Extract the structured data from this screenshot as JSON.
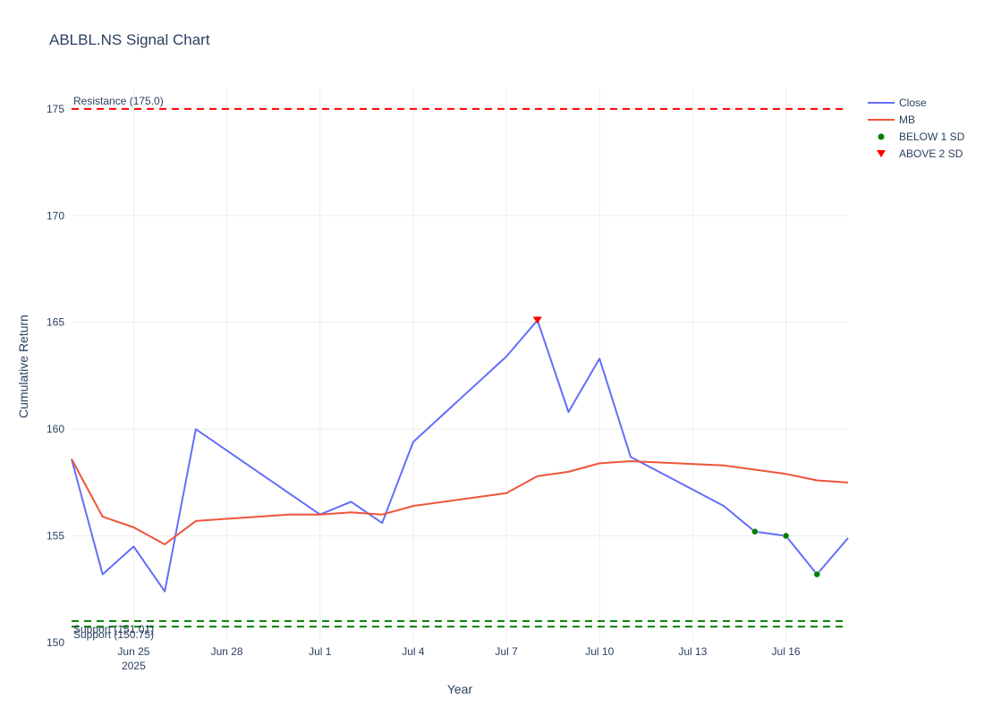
{
  "chart_data": {
    "type": "line",
    "title": "ABLBL.NS Signal Chart",
    "xlabel": "Year",
    "ylabel": "Cumulative Return",
    "x_axis_type": "date",
    "xlim": [
      "2025-06-23",
      "2025-07-18"
    ],
    "ylim": [
      150,
      176
    ],
    "y_ticks": [
      150,
      155,
      160,
      165,
      170,
      175
    ],
    "x_ticks": [
      {
        "date": "2025-06-25",
        "label": "Jun 25",
        "sublabel": "2025"
      },
      {
        "date": "2025-06-28",
        "label": "Jun 28",
        "sublabel": ""
      },
      {
        "date": "2025-07-01",
        "label": "Jul 1",
        "sublabel": ""
      },
      {
        "date": "2025-07-04",
        "label": "Jul 4",
        "sublabel": ""
      },
      {
        "date": "2025-07-07",
        "label": "Jul 7",
        "sublabel": ""
      },
      {
        "date": "2025-07-10",
        "label": "Jul 10",
        "sublabel": ""
      },
      {
        "date": "2025-07-13",
        "label": "Jul 13",
        "sublabel": ""
      },
      {
        "date": "2025-07-16",
        "label": "Jul 16",
        "sublabel": ""
      }
    ],
    "grid": true,
    "legend_position": "top-right",
    "series": [
      {
        "name": "Close",
        "kind": "line",
        "color": "#636efa",
        "points": [
          [
            "2025-06-23",
            158.6
          ],
          [
            "2025-06-24",
            153.2
          ],
          [
            "2025-06-25",
            154.5
          ],
          [
            "2025-06-26",
            152.4
          ],
          [
            "2025-06-27",
            160.0
          ],
          [
            "2025-06-30",
            157.0
          ],
          [
            "2025-07-01",
            156.0
          ],
          [
            "2025-07-02",
            156.6
          ],
          [
            "2025-07-03",
            155.6
          ],
          [
            "2025-07-04",
            159.4
          ],
          [
            "2025-07-07",
            163.4
          ],
          [
            "2025-07-08",
            165.1
          ],
          [
            "2025-07-09",
            160.8
          ],
          [
            "2025-07-10",
            163.3
          ],
          [
            "2025-07-11",
            158.7
          ],
          [
            "2025-07-14",
            156.4
          ],
          [
            "2025-07-15",
            155.2
          ],
          [
            "2025-07-16",
            155.0
          ],
          [
            "2025-07-17",
            153.2
          ],
          [
            "2025-07-18",
            154.9
          ]
        ]
      },
      {
        "name": "MB",
        "kind": "line",
        "color": "#ef553b",
        "points": [
          [
            "2025-06-23",
            158.6
          ],
          [
            "2025-06-24",
            155.9
          ],
          [
            "2025-06-25",
            155.4
          ],
          [
            "2025-06-26",
            154.6
          ],
          [
            "2025-06-27",
            155.7
          ],
          [
            "2025-06-30",
            156.0
          ],
          [
            "2025-07-01",
            156.0
          ],
          [
            "2025-07-02",
            156.1
          ],
          [
            "2025-07-03",
            156.0
          ],
          [
            "2025-07-04",
            156.4
          ],
          [
            "2025-07-07",
            157.0
          ],
          [
            "2025-07-08",
            157.8
          ],
          [
            "2025-07-09",
            158.0
          ],
          [
            "2025-07-10",
            158.4
          ],
          [
            "2025-07-11",
            158.5
          ],
          [
            "2025-07-14",
            158.3
          ],
          [
            "2025-07-15",
            158.1
          ],
          [
            "2025-07-16",
            157.9
          ],
          [
            "2025-07-17",
            157.6
          ],
          [
            "2025-07-18",
            157.5
          ]
        ]
      },
      {
        "name": "BELOW 1 SD",
        "kind": "scatter",
        "marker": "circle",
        "color": "#008000",
        "points": [
          [
            "2025-07-15",
            155.2
          ],
          [
            "2025-07-16",
            155.0
          ],
          [
            "2025-07-17",
            153.2
          ]
        ]
      },
      {
        "name": "ABOVE 2 SD",
        "kind": "scatter",
        "marker": "triangle-down",
        "color": "#ff0000",
        "points": [
          [
            "2025-07-08",
            165.1
          ]
        ]
      }
    ],
    "reference_lines": [
      {
        "label": "Resistance (175.0)",
        "y": 175.0,
        "color": "#ff0000"
      },
      {
        "label": "Support (151.01)",
        "y": 151.01,
        "color": "#008000"
      },
      {
        "label": "Support (150.75)",
        "y": 150.75,
        "color": "#008000"
      }
    ]
  }
}
